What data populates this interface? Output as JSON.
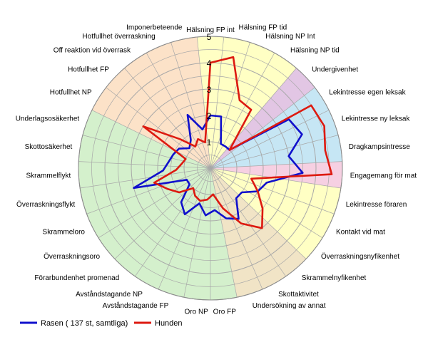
{
  "chart_data": {
    "type": "radar",
    "r_range": [
      0,
      5
    ],
    "ticks": [
      "1",
      "2",
      "3",
      "4",
      "5"
    ],
    "categories": [
      "Hälsning FP int",
      "Hälsning FP tid",
      "Hälsning NP Int",
      "Hälsning NP tid",
      "Undergivenhet",
      "Lekintresse egen leksak",
      "Lekintresse ny leksak",
      "Dragkampsintresse",
      "Engagemang för mat",
      "Lekintresse föraren",
      "Kontakt vid mat",
      "Överraskningsnyfikenhet",
      "Skrammelnyfikenhet",
      "Skottaktivitet",
      "Undersökning av annat",
      "Oro FP",
      "Oro NP",
      "Avståndstagande FP",
      "Avståndstagande NP",
      "Förarbundenhet promenad",
      "Överraskningsoro",
      "Skrammeloro",
      "Överraskningsflykt",
      "Skrammelflykt",
      "Skottosäkerhet",
      "Underlagsosäkerhet",
      "Hotfullhet NP",
      "Hotfullhet FP",
      "Off reaktion vid överrask",
      "Hotfullhet överraskning",
      "Imponerbeteende"
    ],
    "series": [
      {
        "name": "Rasen ( 137 st, samtliga)",
        "color": "#1010cc",
        "values": [
          2.0,
          2.0,
          1.0,
          1.0,
          1.0,
          3.5,
          3.7,
          3.0,
          3.5,
          2.2,
          2.0,
          1.5,
          1.5,
          2.2,
          2.0,
          1.6,
          1.8,
          1.4,
          2.0,
          1.7,
          1.0,
          1.0,
          3.0,
          1.8,
          1.6,
          1.5,
          1.4,
          1.1,
          1.3,
          2.2,
          1.5
        ]
      },
      {
        "name": "Hunden",
        "color": "#dd1a10",
        "values": [
          4.0,
          4.3,
          2.8,
          2.7,
          1.0,
          4.5,
          4.6,
          4.4,
          4.6,
          1.6,
          2.0,
          2.5,
          3.0,
          2.4,
          1.6,
          1.0,
          1.2,
          1.3,
          1.2,
          1.0,
          1.5,
          1.8,
          2.2,
          1.3,
          1.1,
          1.0,
          3.0,
          1.6,
          1.0,
          1.2,
          1.0
        ]
      }
    ],
    "sectors": [
      {
        "from": 0,
        "to": 4,
        "color": "#ffffc4"
      },
      {
        "from": 4,
        "to": 5,
        "color": "#e2c6e4"
      },
      {
        "from": 5,
        "to": 8,
        "color": "#c6e6f4"
      },
      {
        "from": 8,
        "to": 9,
        "color": "#f6d0e2"
      },
      {
        "from": 9,
        "to": 12,
        "color": "#ffffc4"
      },
      {
        "from": 12,
        "to": 15,
        "color": "#f1e4c6"
      },
      {
        "from": 15,
        "to": 26,
        "color": "#d4f0cc"
      },
      {
        "from": 26,
        "to": 31,
        "color": "#fce2c8"
      }
    ],
    "legend_position": "bottom-left"
  }
}
